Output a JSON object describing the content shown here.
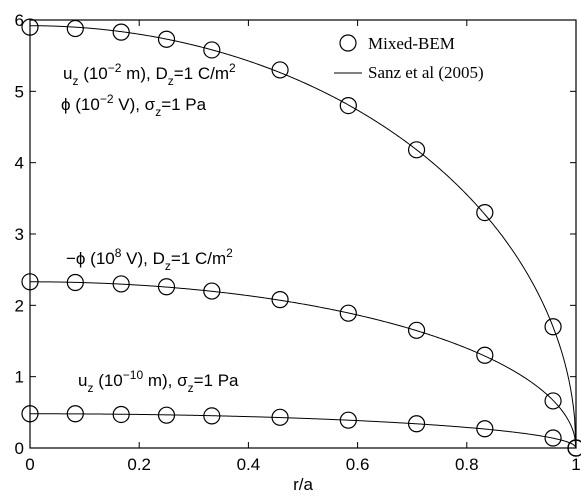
{
  "chart_data": {
    "type": "line",
    "xlabel": "r/a",
    "ylabel": "",
    "xlim": [
      0,
      1
    ],
    "ylim": [
      0,
      6
    ],
    "xticks": [
      "0",
      "0.2",
      "0.4",
      "0.6",
      "0.8",
      "1"
    ],
    "yticks": [
      "0",
      "1",
      "2",
      "3",
      "4",
      "5",
      "6"
    ],
    "grid": false,
    "legend_position": "top-right",
    "legend": {
      "markers_label": "Mixed-BEM",
      "line_label": "Sanz et al (2005)"
    },
    "annotations": {
      "a1": {
        "base": "u",
        "sub": "z",
        "mid": " (10",
        "sup": "−2",
        "rest": " m), D",
        "sub2": "z",
        "rest2": "=1 C/m",
        "sup2": "2"
      },
      "a2": {
        "base": "ϕ (10",
        "sup": "−2",
        "rest": " V), σ",
        "sub": "z",
        "rest2": "=1 Pa"
      },
      "a3": {
        "base": "−ϕ (10",
        "sup": "8",
        "rest": " V), D",
        "sub": "z",
        "rest2": "=1 C/m",
        "sup2": "2"
      },
      "a4": {
        "base": "u",
        "sub": "z",
        "mid": " (10",
        "sup": "−10",
        "rest": " m), σ",
        "sub2": "z",
        "rest2": "=1 Pa"
      }
    },
    "series": [
      {
        "line": {
          "kind": "sqrt",
          "amplitude": 5.92
        },
        "markers_x": [
          0,
          0.083,
          0.167,
          0.25,
          0.333,
          0.458,
          0.583,
          0.708,
          0.833,
          0.958,
          1.0
        ],
        "markers_y": [
          5.9,
          5.88,
          5.83,
          5.73,
          5.58,
          5.3,
          4.8,
          4.18,
          3.3,
          1.7,
          0
        ]
      },
      {
        "line": {
          "kind": "sqrt",
          "amplitude": 2.33
        },
        "markers_x": [
          0,
          0.083,
          0.167,
          0.25,
          0.333,
          0.458,
          0.583,
          0.708,
          0.833,
          0.958,
          1.0
        ],
        "markers_y": [
          2.33,
          2.32,
          2.3,
          2.26,
          2.2,
          2.08,
          1.89,
          1.65,
          1.3,
          0.66,
          0
        ]
      },
      {
        "line": {
          "kind": "sqrt",
          "amplitude": 0.48
        },
        "markers_x": [
          0,
          0.083,
          0.167,
          0.25,
          0.333,
          0.458,
          0.583,
          0.708,
          0.833,
          0.958,
          1.0
        ],
        "markers_y": [
          0.48,
          0.48,
          0.47,
          0.46,
          0.45,
          0.43,
          0.39,
          0.34,
          0.27,
          0.14,
          0
        ]
      }
    ]
  }
}
